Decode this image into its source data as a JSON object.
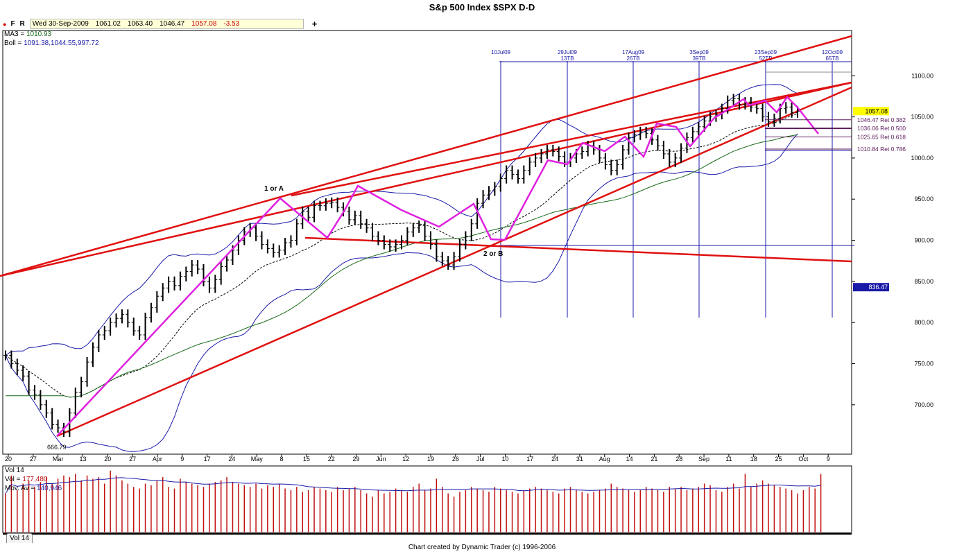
{
  "title": "S&p 500 Index $SPX   D-D",
  "toolbar": {
    "btn_f": "F",
    "btn_r": "R",
    "date": "Wed 30-Sep-2009",
    "open": "1061.02",
    "high": "1063.40",
    "low": "1046.47",
    "close": "1057.08",
    "change": "-3.53",
    "add": "+"
  },
  "indicators": {
    "ma_label": "MA3 =",
    "ma_value": "1010.93",
    "boll_label": "Boll =",
    "boll_value": "1091.38,1044.55,997.72"
  },
  "price_badges": {
    "last": "1057.08",
    "low_line": "836.47"
  },
  "retracements": [
    {
      "label": "1046.47 Ret 0.382",
      "value": 1046.47
    },
    {
      "label": "1036.06 Ret 0.500",
      "value": 1036.06
    },
    {
      "label": "1025.65 Ret 0.618",
      "value": 1025.65
    },
    {
      "label": "1010.84 Ret 0.786",
      "value": 1010.84
    }
  ],
  "annotations": {
    "low": "666.79",
    "wave1": "1 or A",
    "wave2": "2 or B"
  },
  "cycle_markers": [
    {
      "top": "10Jul09",
      "bottom": ""
    },
    {
      "top": "29Jul09",
      "bottom": "13TB"
    },
    {
      "top": "17Aug09",
      "bottom": "26TB"
    },
    {
      "top": "3Sep09",
      "bottom": "39TB"
    },
    {
      "top": "23Sep09",
      "bottom": "52TB"
    },
    {
      "top": "12Oct09",
      "bottom": "65TB"
    }
  ],
  "volume": {
    "title": "Vol 14",
    "vol_label": "Vol =",
    "vol_value": "177,480",
    "ma_label": "Mov. Av =",
    "ma_value": "140,946",
    "tab": "Vol 14"
  },
  "footer": "Chart created by Dynamic Trader  (c)  1996-2006",
  "colors": {
    "price": "#000000",
    "trend": "#e01010",
    "wave": "#e020e0",
    "bands": "#1a1aa8",
    "ma_long": "#1a6a1a",
    "volume": "#c01010",
    "vol_avg": "#1a1aa8"
  },
  "chart_data": {
    "type": "line",
    "title": "S&p 500 Index $SPX   D-D",
    "y_ticks": [
      700,
      750,
      800,
      850,
      900,
      950,
      1000,
      1050,
      1100
    ],
    "ylim": [
      640,
      1155
    ],
    "x_ticks": [
      "20",
      "27",
      "Mar",
      "13",
      "20",
      "27",
      "Apr",
      "9",
      "17",
      "24",
      "May",
      "8",
      "15",
      "22",
      "29",
      "Jun",
      "12",
      "19",
      "26",
      "Jul",
      "10",
      "17",
      "24",
      "31",
      "Aug",
      "14",
      "21",
      "28",
      "Sep",
      "11",
      "18",
      "25",
      "Oct",
      "9"
    ],
    "series": [
      {
        "name": "Close",
        "values": [
          760,
          750,
          742,
          735,
          718,
          712,
          700,
          690,
          676,
          672,
          667,
          690,
          715,
          728,
          752,
          770,
          785,
          790,
          800,
          805,
          810,
          800,
          790,
          785,
          806,
          818,
          832,
          842,
          850,
          845,
          856,
          862,
          870,
          865,
          850,
          842,
          852,
          868,
          876,
          888,
          900,
          910,
          915,
          905,
          895,
          890,
          885,
          888,
          897,
          900,
          920,
          935,
          928,
          942,
          942,
          945,
          946,
          940,
          935,
          925,
          930,
          920,
          915,
          905,
          900,
          895,
          892,
          895,
          900,
          910,
          915,
          918,
          905,
          895,
          880,
          875,
          870,
          880,
          895,
          905,
          920,
          945,
          955,
          960,
          965,
          975,
          985,
          980,
          975,
          985,
          995,
          1000,
          1005,
          1010,
          1008,
          1002,
          995,
          1000,
          1005,
          1008,
          1015,
          1010,
          1000,
          992,
          985,
          992,
          1010,
          1025,
          1028,
          1032,
          1030,
          1022,
          1015,
          1005,
          995,
          1000,
          1012,
          1025,
          1032,
          1038,
          1045,
          1050,
          1053,
          1060,
          1070,
          1072,
          1065,
          1068,
          1062,
          1060,
          1050,
          1044,
          1048,
          1060,
          1062,
          1055,
          1057
        ]
      }
    ],
    "volume_values": [
      120,
      175,
      130,
      150,
      160,
      140,
      155,
      170,
      150,
      165,
      175,
      170,
      180,
      160,
      175,
      165,
      170,
      150,
      190,
      175,
      160,
      150,
      140,
      135,
      150,
      145,
      160,
      170,
      140,
      135,
      165,
      155,
      150,
      145,
      140,
      150,
      155,
      160,
      170,
      155,
      150,
      145,
      140,
      150,
      135,
      145,
      140,
      150,
      135,
      130,
      140,
      125,
      130,
      140,
      135,
      130,
      125,
      140,
      130,
      135,
      140,
      130,
      120,
      110,
      130,
      120,
      125,
      135,
      130,
      125,
      140,
      150,
      130,
      135,
      165,
      140,
      120,
      110,
      125,
      130,
      140,
      135,
      130,
      125,
      140,
      135,
      130,
      125,
      120,
      130,
      135,
      140,
      135,
      130,
      125,
      120,
      135,
      140,
      130,
      125,
      120,
      125,
      130,
      135,
      150,
      140,
      135,
      130,
      125,
      130,
      140,
      135,
      130,
      125,
      140,
      135,
      140,
      130,
      135,
      140,
      150,
      145,
      130,
      125,
      140,
      150,
      135,
      180,
      140,
      150,
      160,
      150,
      145,
      140,
      135,
      130,
      120,
      130,
      140,
      135,
      180
    ]
  }
}
